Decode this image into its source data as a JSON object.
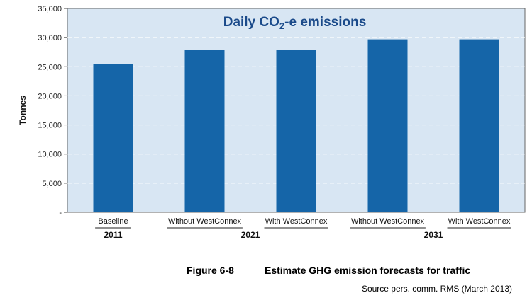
{
  "chart_data": {
    "type": "bar",
    "title_prefix": "Daily CO",
    "title_sub": "2",
    "title_suffix": "-e emissions",
    "ylabel": "Tonnes",
    "ylim": [
      0,
      35000
    ],
    "yticks": [
      0,
      5000,
      10000,
      15000,
      20000,
      25000,
      30000,
      35000
    ],
    "ytick_labels": [
      "-",
      "5,000",
      "10,000",
      "15,000",
      "20,000",
      "25,000",
      "30,000",
      "35,000"
    ],
    "grid": true,
    "categories": [
      "Baseline",
      "Without WestConnex",
      "With WestConnex",
      "Without WestConnex",
      "With WestConnex"
    ],
    "values": [
      25500,
      27900,
      27900,
      29700,
      29700
    ],
    "groups": [
      {
        "label": "2011",
        "categories": [
          0
        ]
      },
      {
        "label": "2021",
        "categories": [
          1,
          2
        ]
      },
      {
        "label": "2031",
        "categories": [
          3,
          4
        ]
      }
    ],
    "colors": {
      "plot_bg": "#d8e6f3",
      "bar": "#1565a8",
      "grid": "#ffffff",
      "title": "#1a4a8a"
    }
  },
  "caption": {
    "figure": "Figure 6-8",
    "text": "Estimate GHG emission forecasts for traffic",
    "source": "Source pers. comm. RMS (March 2013)"
  }
}
